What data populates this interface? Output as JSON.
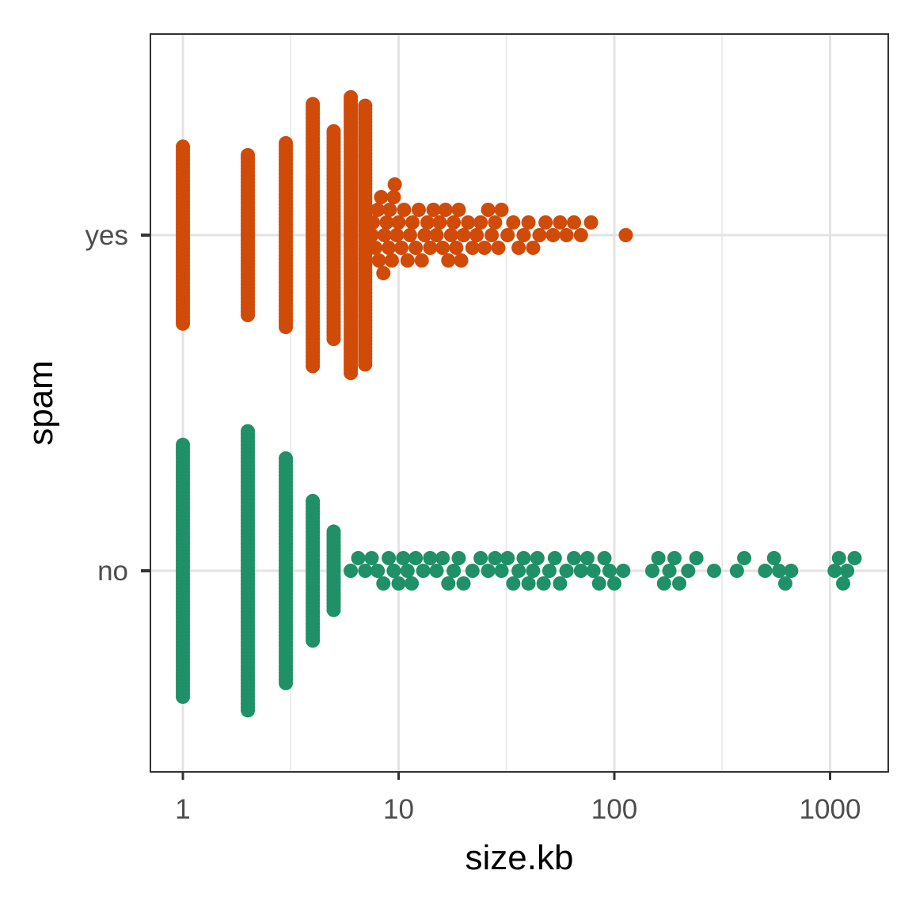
{
  "chart_data": {
    "type": "scatter",
    "subtype": "beeswarm",
    "xlabel": "size.kb",
    "ylabel": "spam",
    "x_scale": "log10",
    "xlim": [
      0.85,
      1600
    ],
    "x_ticks": [
      1,
      10,
      100,
      1000
    ],
    "x_tick_labels": [
      "1",
      "10",
      "100",
      "1000"
    ],
    "categories": [
      "no",
      "yes"
    ],
    "grid": true,
    "legend": "none",
    "point_colors": {
      "yes": "#D04A08",
      "no": "#1F9068"
    },
    "series": [
      {
        "category": "yes",
        "integer_bins": [
          {
            "x": 1,
            "count": 53
          },
          {
            "x": 2,
            "count": 48
          },
          {
            "x": 3,
            "count": 55
          },
          {
            "x": 4,
            "count": 78
          },
          {
            "x": 5,
            "count": 62
          },
          {
            "x": 6,
            "count": 82
          },
          {
            "x": 7,
            "count": 77
          }
        ],
        "points": [
          7.5,
          7.6,
          7.8,
          8.0,
          8.1,
          8.3,
          8.5,
          8.6,
          8.8,
          9.0,
          9.1,
          9.3,
          9.5,
          9.6,
          9.8,
          10,
          10.3,
          10.6,
          11,
          11.3,
          11.6,
          12,
          12.4,
          12.8,
          13.2,
          13.6,
          14,
          14.5,
          15,
          15.5,
          16,
          16.5,
          17,
          17.5,
          18,
          18.5,
          19,
          19.5,
          20,
          21,
          22,
          23,
          24,
          25,
          26,
          27,
          28,
          29,
          30,
          32,
          34,
          36,
          38,
          40,
          42,
          45,
          48,
          52,
          56,
          60,
          65,
          70,
          78,
          113
        ]
      },
      {
        "category": "no",
        "integer_bins": [
          {
            "x": 1,
            "count": 75
          },
          {
            "x": 2,
            "count": 83
          },
          {
            "x": 3,
            "count": 67
          },
          {
            "x": 4,
            "count": 42
          },
          {
            "x": 5,
            "count": 24
          }
        ],
        "points": [
          6,
          6.5,
          7,
          7.5,
          8,
          8.5,
          9,
          9.5,
          10,
          10.5,
          11,
          11.5,
          12,
          13,
          14,
          15,
          16,
          17,
          18,
          19,
          20,
          22,
          24,
          26,
          28,
          30,
          32,
          34,
          36,
          38,
          40,
          42,
          44,
          47,
          50,
          53,
          56,
          60,
          65,
          70,
          75,
          80,
          85,
          90,
          95,
          100,
          110,
          150,
          160,
          170,
          180,
          190,
          200,
          220,
          240,
          290,
          370,
          400,
          500,
          550,
          580,
          620,
          660,
          1050,
          1100,
          1150,
          1200,
          1300
        ]
      }
    ]
  }
}
